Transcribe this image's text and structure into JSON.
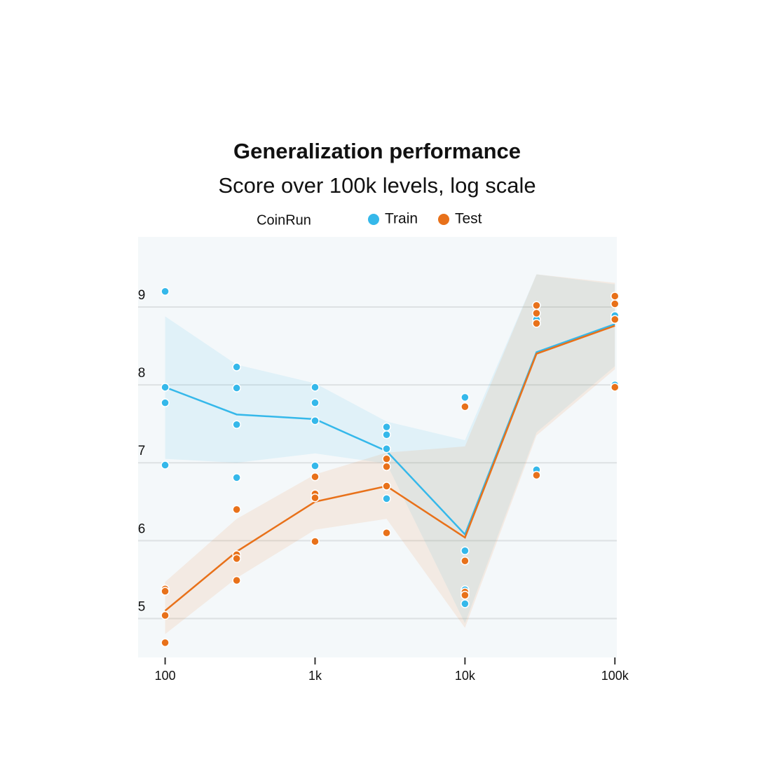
{
  "chart_data": {
    "type": "line",
    "title": "Generalization performance",
    "subtitle": "Score over 100k levels, log scale",
    "legend_title": "CoinRun",
    "x_scale": "log",
    "xlim": [
      66,
      103000
    ],
    "xticks": [
      {
        "value": 100,
        "label": "100"
      },
      {
        "value": 1000,
        "label": "1k"
      },
      {
        "value": 10000,
        "label": "10k"
      },
      {
        "value": 100000,
        "label": "100k"
      }
    ],
    "ylim": [
      4.5,
      9.9
    ],
    "yticks": [
      5,
      6,
      7,
      8,
      9
    ],
    "grid": true,
    "x": [
      100,
      300,
      1000,
      3000,
      10000,
      30000,
      100000
    ],
    "series": [
      {
        "name": "Train",
        "color": "#35b8ea",
        "values": [
          7.97,
          7.62,
          7.56,
          7.15,
          6.08,
          8.42,
          8.78
        ],
        "upper": [
          8.88,
          8.26,
          8.02,
          7.53,
          7.29,
          9.42,
          9.29
        ],
        "lower": [
          7.05,
          7.0,
          7.12,
          6.99,
          4.94,
          7.39,
          8.24
        ],
        "points_x": [
          100,
          100,
          100,
          100,
          300,
          300,
          300,
          300,
          1000,
          1000,
          1000,
          1000,
          3000,
          3000,
          3000,
          3000,
          10000,
          10000,
          10000,
          10000,
          30000,
          30000,
          100000,
          100000
        ],
        "points_y": [
          9.2,
          7.97,
          7.77,
          6.97,
          8.23,
          7.96,
          7.49,
          6.81,
          7.97,
          7.77,
          7.54,
          6.96,
          7.46,
          7.36,
          7.18,
          6.54,
          7.84,
          5.87,
          5.37,
          5.19,
          8.84,
          6.91,
          8.89,
          8.0
        ]
      },
      {
        "name": "Test",
        "color": "#e8711a",
        "values": [
          5.1,
          5.86,
          6.5,
          6.7,
          6.04,
          8.4,
          8.76
        ],
        "upper": [
          5.47,
          6.28,
          6.85,
          7.13,
          7.21,
          9.42,
          9.31
        ],
        "lower": [
          4.8,
          5.52,
          6.14,
          6.28,
          4.88,
          7.35,
          8.2
        ],
        "points_x": [
          100,
          100,
          100,
          100,
          300,
          300,
          300,
          300,
          1000,
          1000,
          1000,
          1000,
          3000,
          3000,
          3000,
          3000,
          10000,
          10000,
          10000,
          10000,
          30000,
          30000,
          30000,
          30000,
          100000,
          100000,
          100000,
          100000
        ],
        "points_y": [
          5.38,
          5.35,
          5.04,
          4.69,
          6.4,
          5.82,
          5.77,
          5.49,
          6.82,
          6.6,
          6.55,
          5.99,
          7.05,
          6.95,
          6.7,
          6.1,
          7.72,
          5.74,
          5.34,
          5.3,
          9.02,
          8.92,
          8.79,
          6.84,
          9.14,
          9.04,
          8.84,
          7.97
        ]
      }
    ]
  }
}
